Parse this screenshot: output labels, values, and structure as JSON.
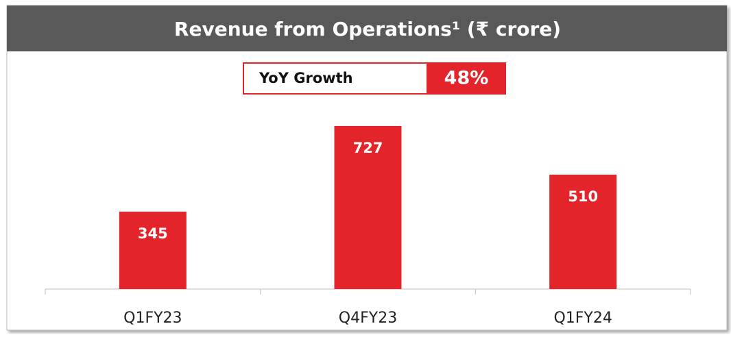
{
  "chart_data": {
    "type": "bar",
    "title": "Revenue from Operations¹ (₹ crore)",
    "annotations": [
      "YoY Growth",
      "48%"
    ],
    "categories": [
      "Q1FY23",
      "Q4FY23",
      "Q1FY24"
    ],
    "values": [
      345,
      727,
      510
    ],
    "color": "#e3242b"
  }
}
